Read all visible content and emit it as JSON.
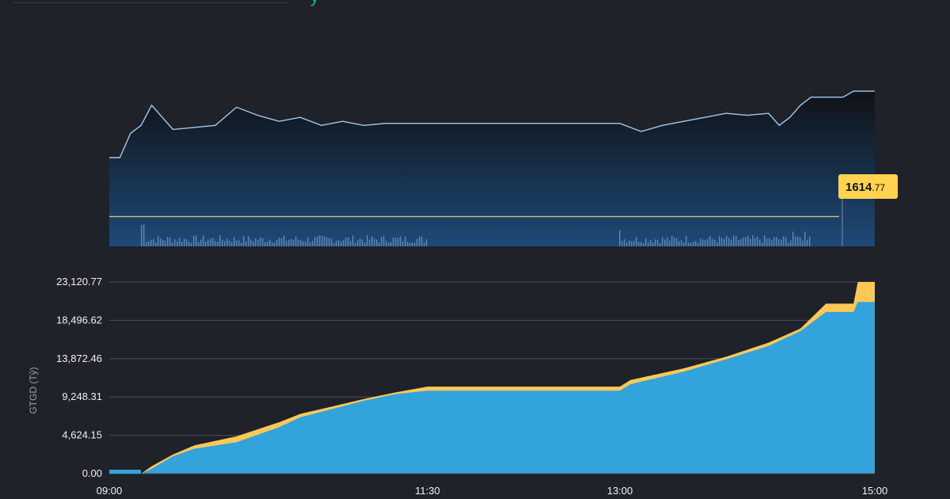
{
  "header": {
    "partial_title": "y"
  },
  "chart_data": [
    {
      "type": "area",
      "x": [
        "09:00",
        "09:05",
        "09:10",
        "09:15",
        "09:20",
        "09:25",
        "09:30",
        "09:40",
        "09:50",
        "10:00",
        "10:10",
        "10:20",
        "10:30",
        "10:40",
        "10:50",
        "11:00",
        "11:10",
        "11:20",
        "11:30",
        "13:00",
        "13:10",
        "13:20",
        "13:30",
        "13:40",
        "13:50",
        "14:00",
        "14:10",
        "14:15",
        "14:20",
        "14:25",
        "14:30",
        "14:45",
        "14:50",
        "15:00"
      ],
      "values": [
        1644,
        1644,
        1656,
        1660,
        1670,
        1664,
        1658,
        1659,
        1660,
        1669,
        1665,
        1662,
        1664,
        1660,
        1662,
        1660,
        1661,
        1661,
        1661,
        1661,
        1657,
        1660,
        1662,
        1664,
        1666,
        1665,
        1666,
        1660,
        1664,
        1670,
        1674,
        1674,
        1677,
        1677
      ],
      "reference_line": {
        "value": "1614",
        "decimals": ".77"
      },
      "volume_bars": true,
      "ylim": [
        1600,
        1690
      ]
    },
    {
      "type": "area",
      "ylabel": "GTGD (Tỷ)",
      "x_ticks": [
        "09:00",
        "11:30",
        "13:00",
        "15:00"
      ],
      "y_ticks": [
        "0.00",
        "4,624.15",
        "9,248.31",
        "13,872.46",
        "18,496.62",
        "23,120.77"
      ],
      "ylim": [
        0,
        23120.77
      ],
      "x": [
        "09:00",
        "09:15",
        "09:20",
        "09:30",
        "09:40",
        "10:00",
        "10:20",
        "10:30",
        "10:45",
        "11:00",
        "11:15",
        "11:30",
        "13:00",
        "13:05",
        "13:30",
        "13:50",
        "14:10",
        "14:25",
        "14:37",
        "14:45",
        "14:50",
        "14:52",
        "15:00"
      ],
      "series": [
        {
          "color": "#ffc857",
          "values": [
            0,
            0,
            900,
            2300,
            3400,
            4500,
            6200,
            7200,
            8100,
            9000,
            9800,
            10500,
            10500,
            11300,
            12700,
            14100,
            15800,
            17500,
            20500,
            20500,
            20500,
            23120,
            23120
          ]
        },
        {
          "color": "#33a3dc",
          "values": [
            0,
            0,
            600,
            2100,
            3000,
            3800,
            5600,
            6800,
            7800,
            8800,
            9600,
            10000,
            10000,
            10800,
            12300,
            13800,
            15400,
            17200,
            19500,
            19500,
            19500,
            20700,
            20700
          ]
        }
      ]
    }
  ]
}
